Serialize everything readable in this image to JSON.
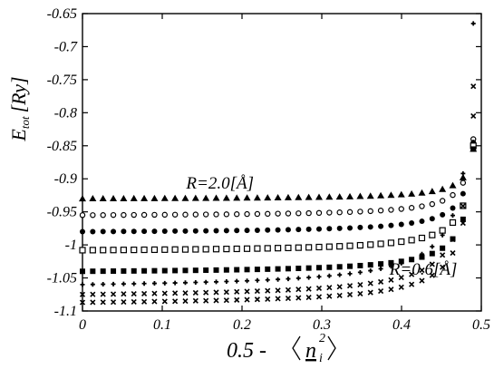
{
  "chart_data": {
    "type": "scatter",
    "ylabel": "E_tot [Ry]",
    "ylabel_main": "E",
    "ylabel_sub": "tot",
    "ylabel_unit": "[Ry]",
    "xlabel": "0.5 -⟨n_i^2⟩",
    "xlabel_prefix": "0.5 -",
    "xlabel_var": "n",
    "xlabel_sup": "2",
    "xlabel_sub": "i",
    "xlim": [
      0,
      0.5
    ],
    "ylim": [
      -1.1,
      -0.65
    ],
    "x_ticks": [
      "0",
      "0.1",
      "0.2",
      "0.3",
      "0.4",
      "0.5"
    ],
    "y_ticks": [
      "-0.65",
      "-0.7",
      "-0.75",
      "-0.8",
      "-0.85",
      "-0.9",
      "-0.95",
      "-1",
      "-1.05",
      "-1.1"
    ],
    "annotations": [
      {
        "text": "R=2.0[Å]",
        "x": 0.13,
        "y": -0.915
      },
      {
        "text": "R=0.6[Å]",
        "x": 0.385,
        "y": -1.045
      }
    ],
    "grid": false,
    "marker_color": "#000000",
    "series": [
      {
        "marker": "triangle",
        "x0": 0.0,
        "x1": 0.49,
        "y_start": -0.93,
        "y_end": -0.855
      },
      {
        "marker": "open-circle",
        "x0": 0.0,
        "x1": 0.49,
        "y_start": -0.955,
        "y_end": -0.84
      },
      {
        "marker": "filled-circle",
        "x0": 0.0,
        "x1": 0.49,
        "y_start": -0.98,
        "y_end": -0.845
      },
      {
        "marker": "open-square",
        "x0": 0.0,
        "x1": 0.49,
        "y_start": -1.008,
        "y_end": -0.85
      },
      {
        "marker": "filled-square",
        "x0": 0.0,
        "x1": 0.49,
        "y_start": -1.04,
        "y_end": -0.855
      },
      {
        "marker": "plus",
        "x0": 0.0,
        "x1": 0.49,
        "y_start": -1.06,
        "y_end": -0.665
      },
      {
        "marker": "cross",
        "x0": 0.0,
        "x1": 0.49,
        "y_start": -1.075,
        "y_end": -0.76
      },
      {
        "marker": "cross",
        "x0": 0.0,
        "x1": 0.49,
        "y_start": -1.087,
        "y_end": -0.805
      }
    ]
  }
}
